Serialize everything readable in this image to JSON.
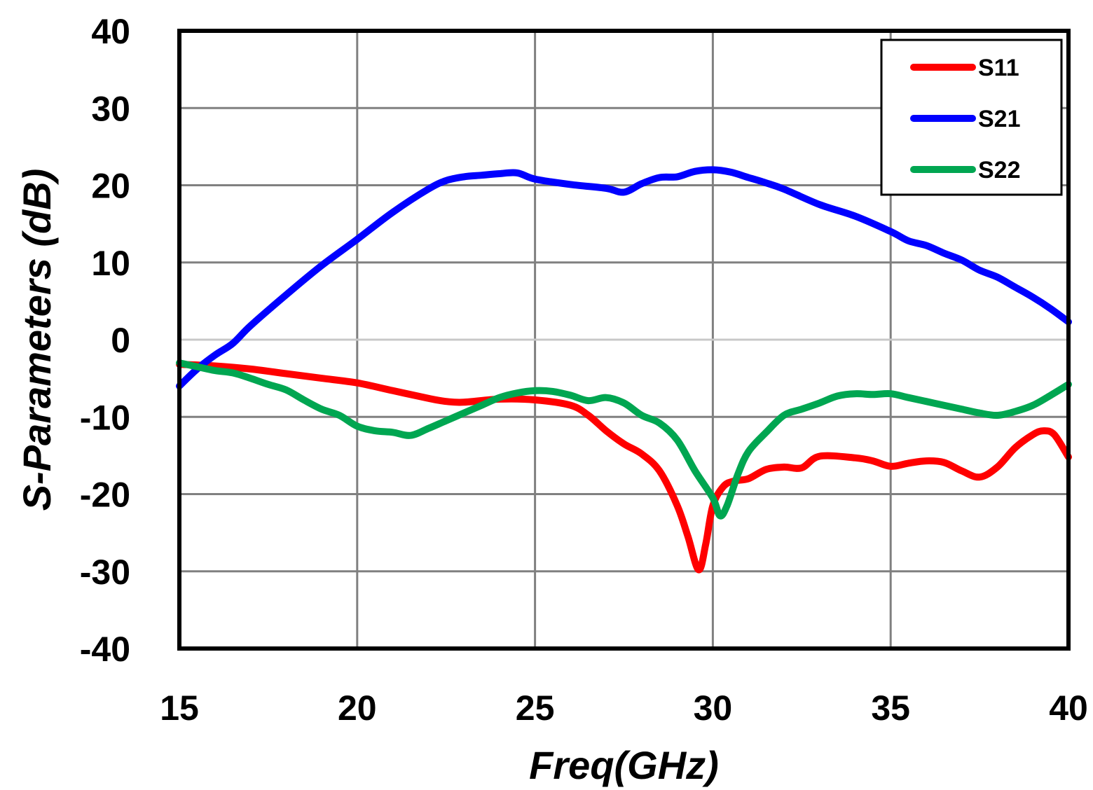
{
  "chart_data": {
    "type": "line",
    "title": "",
    "xlabel": "Freq(GHz)",
    "ylabel": "S-Parameters (dB)",
    "xlim": [
      15,
      40
    ],
    "ylim": [
      -40,
      40
    ],
    "xticks": [
      15,
      20,
      25,
      30,
      35,
      40
    ],
    "yticks": [
      -40,
      -30,
      -20,
      -10,
      0,
      10,
      20,
      30,
      40
    ],
    "grid": true,
    "legend_position": "top-right",
    "series": [
      {
        "name": "S11",
        "color": "#ff0000",
        "x": [
          15,
          16,
          17,
          18,
          19,
          20,
          21,
          22,
          22.5,
          23,
          24,
          25,
          26,
          26.5,
          27,
          27.5,
          28,
          28.5,
          29,
          29.3,
          29.6,
          29.8,
          30,
          30.3,
          30.6,
          31,
          31.5,
          32,
          32.5,
          33,
          34,
          34.5,
          35,
          35.5,
          36,
          36.5,
          37,
          37.5,
          38,
          38.5,
          39,
          39.3,
          39.6,
          40
        ],
        "values": [
          -3.2,
          -3.4,
          -3.8,
          -4.4,
          -5.0,
          -5.6,
          -6.6,
          -7.6,
          -8.0,
          -8.1,
          -7.7,
          -7.8,
          -8.5,
          -9.8,
          -11.8,
          -13.5,
          -14.8,
          -17.0,
          -21.5,
          -25.5,
          -29.8,
          -26.5,
          -21.5,
          -19.0,
          -18.3,
          -18.0,
          -16.8,
          -16.5,
          -16.6,
          -15.1,
          -15.3,
          -15.7,
          -16.4,
          -16.0,
          -15.7,
          -15.9,
          -17.0,
          -17.8,
          -16.5,
          -14.0,
          -12.3,
          -11.8,
          -12.3,
          -15.2
        ]
      },
      {
        "name": "S21",
        "color": "#0000ff",
        "x": [
          15,
          15.5,
          16,
          16.5,
          17,
          18,
          19,
          20,
          21,
          22,
          22.5,
          23,
          23.5,
          24,
          24.5,
          25,
          26,
          27,
          27.5,
          28,
          28.5,
          29,
          29.5,
          30,
          30.5,
          31,
          31.5,
          32,
          33,
          34,
          35,
          35.5,
          36,
          36.5,
          37,
          37.5,
          38,
          38.5,
          39,
          39.5,
          40
        ],
        "values": [
          -6.0,
          -3.8,
          -2.0,
          -0.5,
          1.8,
          5.8,
          9.6,
          13.0,
          16.5,
          19.5,
          20.6,
          21.1,
          21.3,
          21.5,
          21.6,
          20.8,
          20.1,
          19.6,
          19.1,
          20.2,
          21.0,
          21.1,
          21.8,
          22.0,
          21.7,
          21.0,
          20.3,
          19.5,
          17.5,
          16.0,
          14.0,
          12.8,
          12.2,
          11.2,
          10.3,
          9.0,
          8.1,
          6.8,
          5.5,
          4.0,
          2.3
        ]
      },
      {
        "name": "S22",
        "color": "#00a651",
        "x": [
          15,
          15.5,
          16,
          16.5,
          17,
          17.5,
          18,
          18.5,
          19,
          19.5,
          20,
          20.5,
          21,
          21.5,
          22,
          22.5,
          23,
          23.5,
          24,
          24.5,
          25,
          25.5,
          26,
          26.5,
          27,
          27.5,
          28,
          28.5,
          29,
          29.5,
          30,
          30.2,
          30.4,
          30.7,
          31,
          31.5,
          32,
          32.5,
          33,
          33.5,
          34,
          34.5,
          35,
          35.5,
          36,
          36.5,
          37,
          37.5,
          38,
          38.5,
          39,
          39.5,
          40
        ],
        "values": [
          -3.0,
          -3.5,
          -4.0,
          -4.3,
          -5.0,
          -5.8,
          -6.5,
          -7.8,
          -9.0,
          -9.8,
          -11.2,
          -11.8,
          -12.0,
          -12.4,
          -11.5,
          -10.5,
          -9.5,
          -8.5,
          -7.5,
          -6.9,
          -6.6,
          -6.7,
          -7.2,
          -7.9,
          -7.5,
          -8.2,
          -9.8,
          -10.8,
          -13.0,
          -17.0,
          -20.5,
          -22.8,
          -21.5,
          -17.5,
          -14.5,
          -12.0,
          -9.8,
          -9.0,
          -8.2,
          -7.3,
          -7.0,
          -7.1,
          -7.0,
          -7.5,
          -8.0,
          -8.5,
          -9.0,
          -9.5,
          -9.8,
          -9.3,
          -8.5,
          -7.2,
          -5.8
        ]
      }
    ]
  }
}
